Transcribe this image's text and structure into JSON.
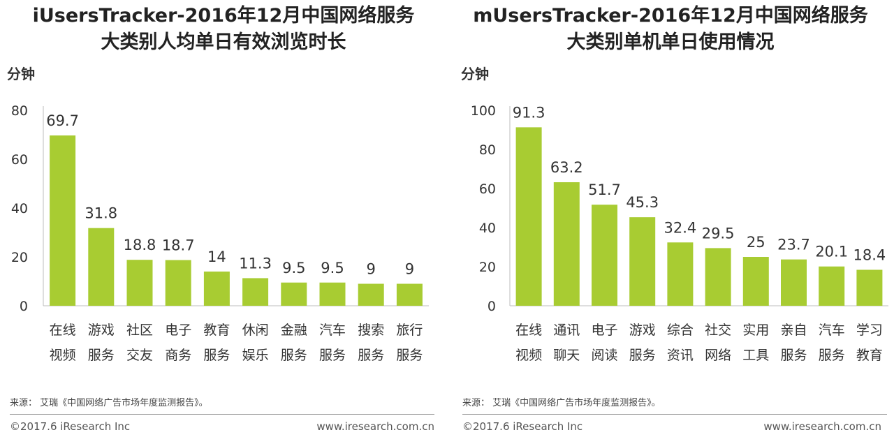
{
  "colors": {
    "bar": "#a8cc32",
    "axis": "#bdbdbd"
  },
  "chart_data": [
    {
      "type": "bar",
      "title_lines": [
        "iUsersTracker-2016年12月中国网络服务",
        "大类别人均单日有效浏览时长"
      ],
      "ylabel": "分钟",
      "ylim": [
        0,
        80
      ],
      "yticks": [
        0,
        20,
        40,
        60,
        80
      ],
      "categories": [
        [
          "在线",
          "视频"
        ],
        [
          "游戏",
          "服务"
        ],
        [
          "社区",
          "交友"
        ],
        [
          "电子",
          "商务"
        ],
        [
          "教育",
          "服务"
        ],
        [
          "休闲",
          "娱乐"
        ],
        [
          "金融",
          "服务"
        ],
        [
          "汽车",
          "服务"
        ],
        [
          "搜索",
          "服务"
        ],
        [
          "旅行",
          "服务"
        ]
      ],
      "values": [
        69.7,
        31.8,
        18.8,
        18.7,
        14,
        11.3,
        9.5,
        9.5,
        9,
        9
      ],
      "value_labels": [
        "69.7",
        "31.8",
        "18.8",
        "18.7",
        "14",
        "11.3",
        "9.5",
        "9.5",
        "9",
        "9"
      ],
      "source": "来源： 艾瑞《中国网络广告市场年度监测报告》。",
      "copyright": "©2017.6 iResearch Inc",
      "website": "www.iresearch.com.cn"
    },
    {
      "type": "bar",
      "title_lines": [
        "mUsersTracker-2016年12月中国网络服务",
        "大类别单机单日使用情况"
      ],
      "ylabel": "分钟",
      "ylim": [
        0,
        100
      ],
      "yticks": [
        0,
        20,
        40,
        60,
        80,
        100
      ],
      "categories": [
        [
          "在线",
          "视频"
        ],
        [
          "通讯",
          "聊天"
        ],
        [
          "电子",
          "阅读"
        ],
        [
          "游戏",
          "服务"
        ],
        [
          "综合",
          "资讯"
        ],
        [
          "社交",
          "网络"
        ],
        [
          "实用",
          "工具"
        ],
        [
          "亲自",
          "服务"
        ],
        [
          "汽车",
          "服务"
        ],
        [
          "学习",
          "教育"
        ]
      ],
      "values": [
        91.3,
        63.2,
        51.7,
        45.3,
        32.4,
        29.5,
        25,
        23.7,
        20.1,
        18.4
      ],
      "value_labels": [
        "91.3",
        "63.2",
        "51.7",
        "45.3",
        "32.4",
        "29.5",
        "25",
        "23.7",
        "20.1",
        "18.4"
      ],
      "source": "来源： 艾瑞《中国网络广告市场年度监测报告》。",
      "copyright": "©2017.6 iResearch Inc",
      "website": "www.iresearch.com.cn"
    }
  ]
}
